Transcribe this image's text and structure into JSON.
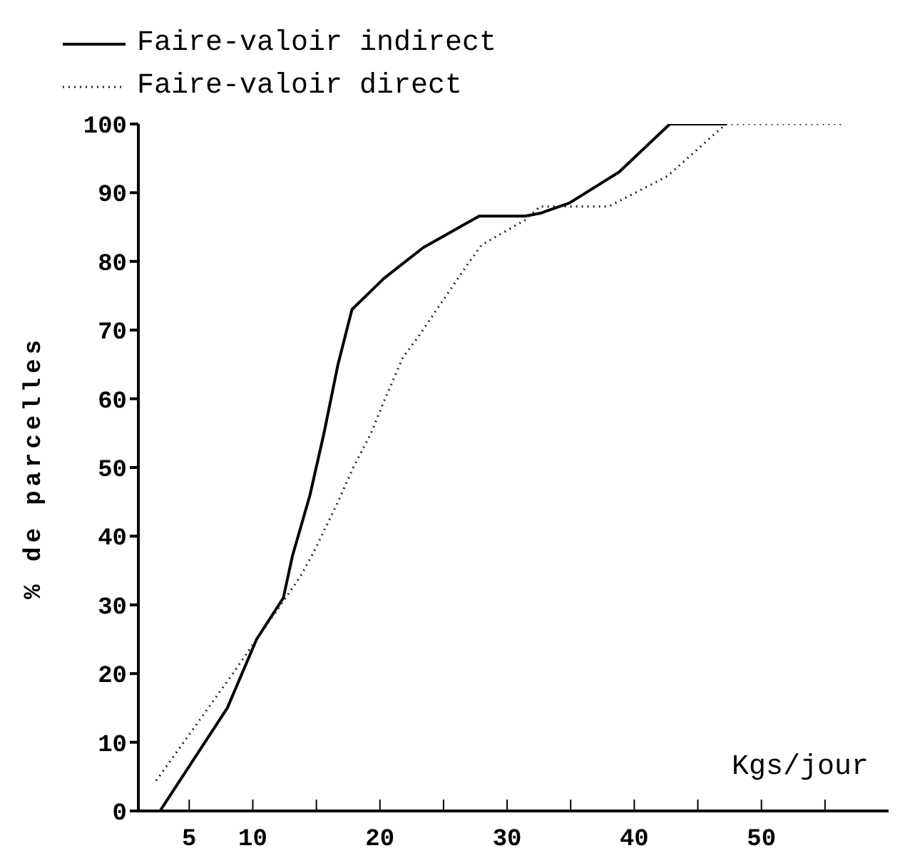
{
  "chart_data": {
    "type": "line",
    "xlabel": "Kgs/jour",
    "ylabel": "% de parcelles",
    "xlim": [
      1,
      60
    ],
    "xticks": [
      5,
      10,
      {
        "value": 15,
        "label": null
      },
      20,
      {
        "value": 25,
        "label": null
      },
      30,
      {
        "value": 35,
        "label": null
      },
      40,
      {
        "value": 45,
        "label": null
      },
      50,
      {
        "value": 55,
        "label": null
      }
    ],
    "ylim": [
      0,
      100
    ],
    "yticks": [
      0,
      10,
      20,
      30,
      40,
      50,
      60,
      70,
      80,
      90,
      100
    ],
    "legend": "top left",
    "marker": "none",
    "series": [
      {
        "name": "Faire-valoir indirect",
        "color": "#000000",
        "line_style": "solid",
        "x": [
          2.7,
          8,
          10.3,
          12.4,
          13.1,
          14.5,
          15.6,
          16.7,
          17.8,
          20.3,
          23.4,
          27.8,
          31.4,
          32.6,
          34.9,
          38.8,
          42.8,
          47.3
        ],
        "values": [
          0,
          15,
          25,
          31,
          37,
          46,
          55,
          65,
          73,
          77.5,
          82,
          86.6,
          86.6,
          87,
          88.5,
          93,
          100,
          100
        ]
      },
      {
        "name": "Faire-valoir direct",
        "color": "#222222",
        "line_style": "dotted",
        "x": [
          2.4,
          8.2,
          12.2,
          13.7,
          14.8,
          16.7,
          17.9,
          19.3,
          20.4,
          21.8,
          23,
          26.9,
          28,
          31.4,
          32.6,
          38,
          42.6,
          47.2,
          56.6
        ],
        "values": [
          4.4,
          19.4,
          30,
          34,
          37.7,
          45,
          50,
          55,
          60,
          66,
          69,
          79.6,
          82.4,
          86,
          88,
          88,
          92.4,
          100,
          100
        ]
      }
    ]
  }
}
